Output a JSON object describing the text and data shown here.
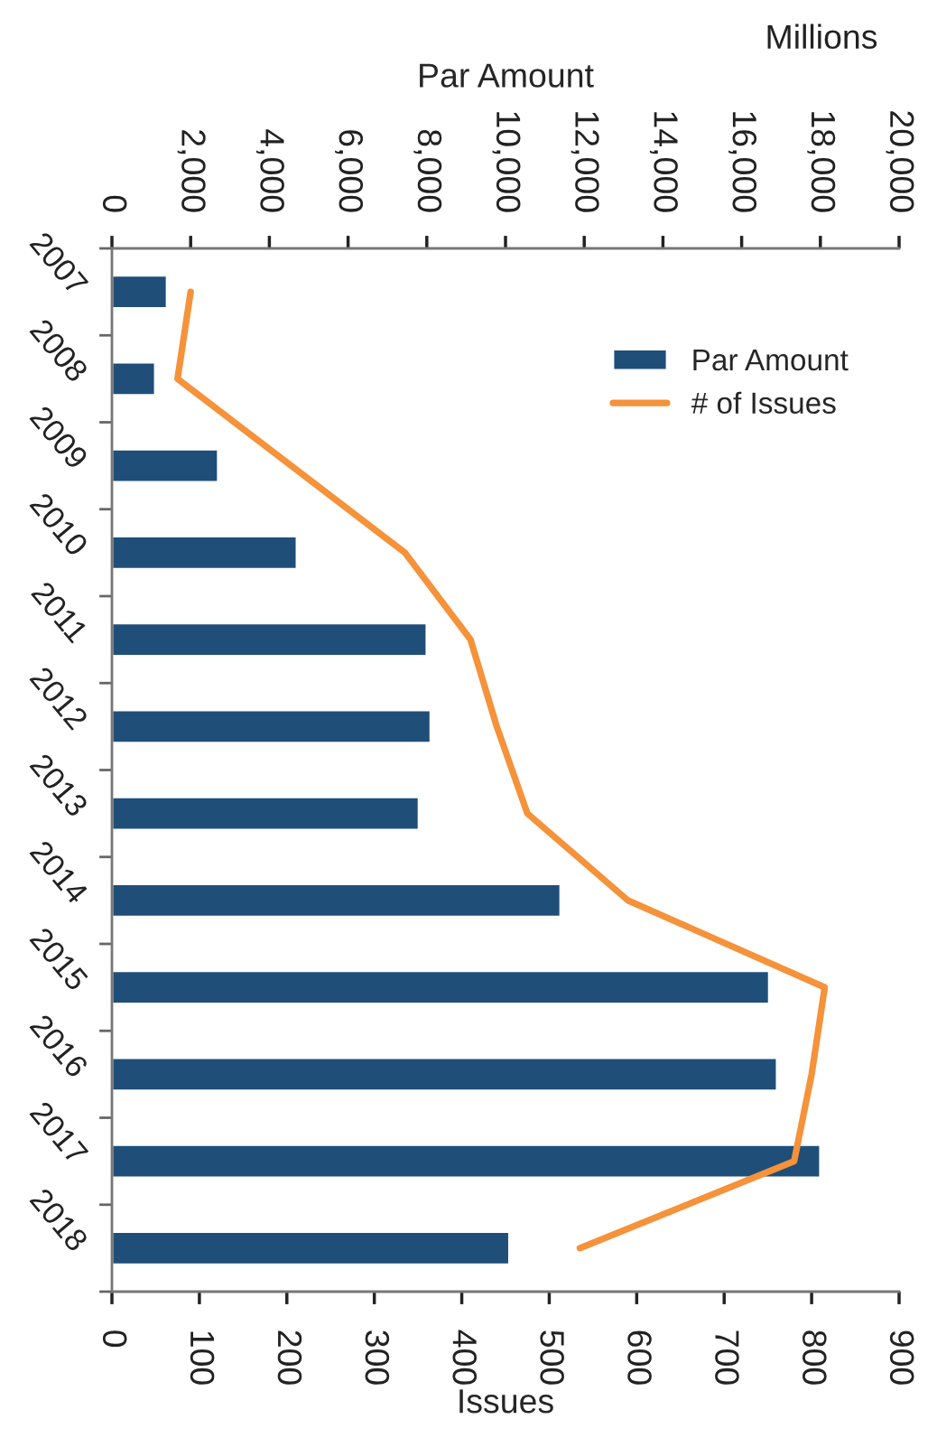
{
  "chart_data": {
    "type": "bar",
    "orientation": "horizontal",
    "x2label": "Par Amount",
    "xlabel": "Issues",
    "annotations": [
      "Millions"
    ],
    "categories": [
      "2007",
      "2008",
      "2009",
      "2010",
      "2011",
      "2012",
      "2013",
      "2014",
      "2015",
      "2016",
      "2017",
      "2018"
    ],
    "series": [
      {
        "name": "Par Amount",
        "axis": "x2",
        "color": "#1f4e79",
        "values": [
          1400,
          1100,
          2700,
          4700,
          8000,
          8100,
          7800,
          11400,
          16700,
          16900,
          18000,
          10100
        ]
      },
      {
        "name": "# of Issues",
        "type": "line",
        "color": "#f5923a",
        "values": [
          90,
          75,
          205,
          335,
          410,
          440,
          475,
          590,
          815,
          800,
          780,
          535
        ]
      }
    ],
    "x2lim": [
      0,
      20000
    ],
    "x2ticks": [
      0,
      {
        "value": 2000,
        "label": "2,000"
      },
      {
        "value": 4000,
        "label": "4,000"
      },
      {
        "value": 6000,
        "label": "6,000"
      },
      {
        "value": 8000,
        "label": "8,000"
      },
      {
        "value": 10000,
        "label": "10,000"
      },
      {
        "value": 12000,
        "label": "12,000"
      },
      {
        "value": 14000,
        "label": "14,000"
      },
      {
        "value": 16000,
        "label": "16,000"
      },
      {
        "value": 18000,
        "label": "18,000"
      },
      {
        "value": 20000,
        "label": "20,000"
      }
    ],
    "xlim": [
      0,
      900
    ],
    "xticks": [
      0,
      100,
      200,
      300,
      400,
      500,
      600,
      700,
      800,
      900
    ],
    "legend": "top right"
  }
}
